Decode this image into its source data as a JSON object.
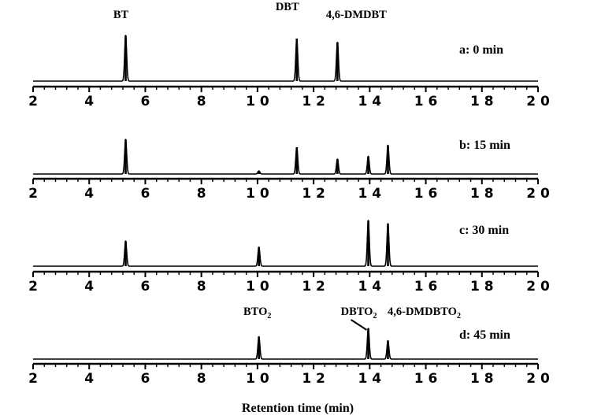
{
  "chart_data": [
    {
      "type": "line",
      "panel_label": "a: 0 min",
      "xlim": [
        2,
        20
      ],
      "x_ticks": [
        2,
        4,
        6,
        8,
        10,
        12,
        14,
        16,
        18,
        20
      ],
      "x_tick_labels": [
        "2",
        "4",
        "6",
        "8",
        "1 0",
        "1 2",
        "1 4",
        "1 6",
        "1 8",
        "2 0"
      ],
      "xlabel": "",
      "peaks": [
        {
          "x": 5.3,
          "height": 1.0
        },
        {
          "x": 11.4,
          "height": 0.93
        },
        {
          "x": 12.85,
          "height": 0.85
        }
      ],
      "annotations": [
        {
          "text": "BT",
          "x": 5.3
        },
        {
          "text": "DBT",
          "x": 11.4
        },
        {
          "text": "4,6-DMDBT",
          "x": 12.85
        }
      ]
    },
    {
      "type": "line",
      "panel_label": "b: 15 min",
      "xlim": [
        2,
        20
      ],
      "x_ticks": [
        2,
        4,
        6,
        8,
        10,
        12,
        14,
        16,
        18,
        20
      ],
      "x_tick_labels": [
        "2",
        "4",
        "6",
        "8",
        "1 0",
        "1 2",
        "1 4",
        "1 6",
        "1 8",
        "2 0"
      ],
      "xlabel": "",
      "peaks": [
        {
          "x": 5.3,
          "height": 0.88
        },
        {
          "x": 10.05,
          "height": 0.08
        },
        {
          "x": 11.4,
          "height": 0.68
        },
        {
          "x": 12.85,
          "height": 0.38
        },
        {
          "x": 13.95,
          "height": 0.45
        },
        {
          "x": 14.65,
          "height": 0.73
        }
      ],
      "annotations": []
    },
    {
      "type": "line",
      "panel_label": "c: 30 min",
      "xlim": [
        2,
        20
      ],
      "x_ticks": [
        2,
        4,
        6,
        8,
        10,
        12,
        14,
        16,
        18,
        20
      ],
      "x_tick_labels": [
        "2",
        "4",
        "6",
        "8",
        "1 0",
        "1 2",
        "1 4",
        "1 6",
        "1 8",
        "2 0"
      ],
      "xlabel": "",
      "peaks": [
        {
          "x": 5.3,
          "height": 0.55
        },
        {
          "x": 10.05,
          "height": 0.42
        },
        {
          "x": 13.95,
          "height": 1.0
        },
        {
          "x": 14.65,
          "height": 0.93
        }
      ],
      "annotations": []
    },
    {
      "type": "line",
      "panel_label": "d: 45 min",
      "xlim": [
        2,
        20
      ],
      "x_ticks": [
        2,
        4,
        6,
        8,
        10,
        12,
        14,
        16,
        18,
        20
      ],
      "x_tick_labels": [
        "2",
        "4",
        "6",
        "8",
        "1 0",
        "1 2",
        "1 4",
        "1 6",
        "1 8",
        "2 0"
      ],
      "xlabel": "Retention time (min)",
      "peaks": [
        {
          "x": 10.05,
          "height": 0.55
        },
        {
          "x": 13.95,
          "height": 0.75
        },
        {
          "x": 14.65,
          "height": 0.45
        }
      ],
      "annotations": [
        {
          "text": "BTO",
          "subscript": "2",
          "x": 10.05
        },
        {
          "text": "DBTO",
          "subscript": "2",
          "x": 13.95
        },
        {
          "text": "4,6-DMDBTO",
          "subscript": "2",
          "x": 14.65
        }
      ]
    }
  ]
}
